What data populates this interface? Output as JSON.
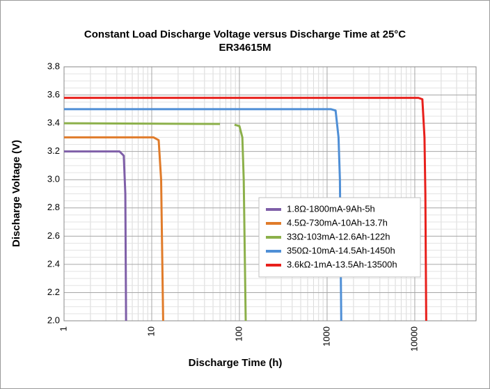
{
  "chart_data": {
    "type": "line",
    "title": "Constant Load Discharge Voltage versus Discharge Time at 25°C",
    "subtitle": "ER34615M",
    "x_label": "Discharge Time (h)",
    "y_label": "Discharge Voltage (V)",
    "log_x": true,
    "grid": true,
    "legend": "lower-right",
    "xlim": [
      1,
      50000
    ],
    "xticks": [
      1,
      10,
      100,
      1000,
      10000
    ],
    "ylim": [
      2.0,
      3.8
    ],
    "yticks": [
      {
        "value": 2.0,
        "label": "2.0"
      },
      2.2,
      2.4,
      2.6,
      2.8,
      {
        "value": 3.0,
        "label": "3.0"
      },
      3.2,
      3.4,
      3.6,
      3.8
    ],
    "series": [
      {
        "name": "1.8Ω-1800mA-9Ah-5h",
        "color": "#7f5fa8",
        "x": [
          1,
          4.3,
          4.8,
          5.0,
          5.1
        ],
        "values": [
          3.2,
          3.2,
          3.17,
          2.9,
          2.0
        ]
      },
      {
        "name": "4.5Ω-730mA-10Ah-13.7h",
        "color": "#e07b2a",
        "x": [
          1,
          10.5,
          12,
          12.8,
          13.5
        ],
        "values": [
          3.3,
          3.3,
          3.28,
          3.0,
          2.0
        ]
      },
      {
        "name": "33Ω-103mA-12.6Ah-122h",
        "color": "#8cb04a",
        "x": [
          1,
          60,
          70,
          88,
          100,
          108,
          112,
          118
        ],
        "values": [
          3.4,
          3.395,
          null,
          3.39,
          3.38,
          3.3,
          3.0,
          2.0
        ]
      },
      {
        "name": "350Ω-10mA-14.5Ah-1450h",
        "color": "#4f8fd6",
        "x": [
          1,
          1100,
          1250,
          1350,
          1400,
          1450
        ],
        "values": [
          3.5,
          3.5,
          3.49,
          3.3,
          3.0,
          2.0
        ]
      },
      {
        "name": "3.6kΩ-1mA-13.5Ah-13500h",
        "color": "#e8201c",
        "x": [
          1,
          11000,
          12200,
          12900,
          13200,
          13500
        ],
        "values": [
          3.58,
          3.58,
          3.57,
          3.3,
          2.9,
          2.0
        ]
      }
    ]
  }
}
